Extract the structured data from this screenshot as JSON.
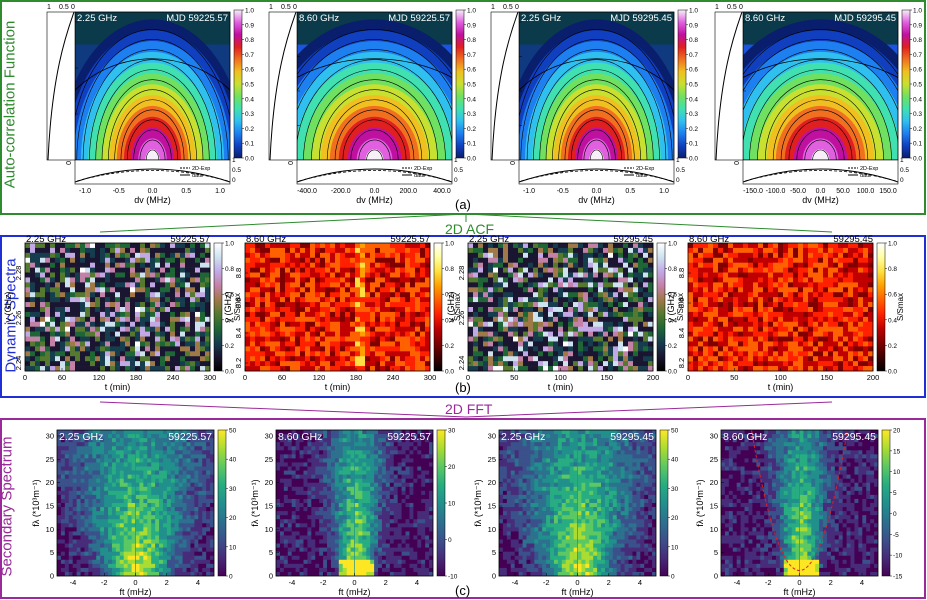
{
  "rows": [
    {
      "key": "acf",
      "title": "Auto-correlation Function",
      "color": "#2e8b2e",
      "label": "(a)",
      "panels": [
        {
          "freq": "2.25 GHz",
          "mjd": "MJD 59225.57",
          "xlabel": "dv (MHz)",
          "ylabel": "dt (min)",
          "xticks": [
            "-1.0",
            "-0.5",
            "0.0",
            "0.5",
            "1.0"
          ],
          "yticks": [
            "0.0",
            "5.0",
            "10.0",
            "15.0"
          ],
          "cbticks": [
            "0.0",
            "0.1",
            "0.2",
            "0.3",
            "0.4",
            "0.5",
            "0.6",
            "0.7",
            "0.8",
            "0.9",
            "1.0"
          ],
          "top_ticks": [
            "1",
            "0.5",
            "0"
          ],
          "right_ticks": [
            "0",
            "0.5",
            "1"
          ],
          "legend": [
            "2D-Exp",
            "data"
          ]
        },
        {
          "freq": "8.60 GHz",
          "mjd": "MJD 59225.57",
          "xlabel": "dv (MHz)",
          "ylabel": "dt (min)",
          "xticks": [
            "-400.0",
            "-200.0",
            "0.0",
            "200.0",
            "400.0"
          ],
          "yticks": [
            "0.0",
            "10.0",
            "20.0",
            "30.0",
            "40.0"
          ],
          "cbticks": [
            "0.0",
            "0.1",
            "0.2",
            "0.3",
            "0.4",
            "0.5",
            "0.6",
            "0.7",
            "0.8",
            "0.9",
            "1.0"
          ],
          "top_ticks": [
            "1",
            "0.5",
            "0"
          ],
          "right_ticks": [
            "0",
            "0.5",
            "1"
          ],
          "legend": [
            "2D-Exp",
            "data"
          ]
        },
        {
          "freq": "2.25 GHz",
          "mjd": "MJD 59295.45",
          "xlabel": "dv (MHz)",
          "ylabel": "dt (min)",
          "xticks": [
            "-1.0",
            "-0.5",
            "0.0",
            "0.5",
            "1.0"
          ],
          "yticks": [
            "0.0",
            "2.0",
            "4.0",
            "6.0",
            "8.0"
          ],
          "cbticks": [
            "0.0",
            "0.1",
            "0.2",
            "0.3",
            "0.4",
            "0.5",
            "0.6",
            "0.7",
            "0.8",
            "0.9",
            "1.0"
          ],
          "top_ticks": [
            "1",
            "0.5",
            "0"
          ],
          "right_ticks": [
            "0",
            "0.5",
            "1"
          ],
          "legend": [
            "2D-Exp",
            "data"
          ]
        },
        {
          "freq": "8.60 GHz",
          "mjd": "MJD 59295.45",
          "xlabel": "dv (MHz)",
          "ylabel": "dt (min)",
          "xticks": [
            "-150.0",
            "-100.0",
            "-50.0",
            "0.0",
            "50.0",
            "100.0",
            "150.0"
          ],
          "yticks": [
            "0.0",
            "10.0",
            "20.0"
          ],
          "cbticks": [
            "0.0",
            "0.1",
            "0.2",
            "0.3",
            "0.4",
            "0.5",
            "0.6",
            "0.7",
            "0.8",
            "0.9",
            "1.0"
          ],
          "top_ticks": [
            "1",
            "0.5",
            "0"
          ],
          "right_ticks": [
            "0",
            "0.5",
            "1"
          ],
          "legend": [
            "2D-Exp",
            "data"
          ]
        }
      ]
    },
    {
      "key": "dyn",
      "title": "Dynamic Spectra",
      "color": "#1f2fd6",
      "label": "(b)",
      "panels": [
        {
          "freq": "2.25 GHz",
          "mjd": "59225.57",
          "xlabel": "t (min)",
          "ylabel": "v (GHz)",
          "xticks": [
            "0",
            "60",
            "120",
            "180",
            "240",
            "300"
          ],
          "yticks": [
            "2.24",
            "2.26",
            "2.28"
          ],
          "cbticks": [
            "0.0",
            "0.2",
            "0.4",
            "0.6",
            "0.8",
            "1.0"
          ],
          "cblabel": "S/Smax",
          "cmap": "cubehelix"
        },
        {
          "freq": "8.60 GHz",
          "mjd": "59225.57",
          "xlabel": "t (min)",
          "ylabel": "v (GHz)",
          "xticks": [
            "0",
            "60",
            "120",
            "180",
            "240",
            "300"
          ],
          "yticks": [
            "8.2",
            "8.4",
            "8.6",
            "8.8"
          ],
          "cbticks": [
            "0.0",
            "0.2",
            "0.4",
            "0.6",
            "0.8",
            "1.0"
          ],
          "cblabel": "S/Smax",
          "cmap": "hot"
        },
        {
          "freq": "2.25 GHz",
          "mjd": "59295.45",
          "xlabel": "t (min)",
          "ylabel": "v (GHz)",
          "xticks": [
            "0",
            "50",
            "100",
            "150",
            "200"
          ],
          "yticks": [
            "2.24",
            "2.26",
            "2.28"
          ],
          "cbticks": [
            "0.0",
            "0.2",
            "0.4",
            "0.6",
            "0.8",
            "1.0"
          ],
          "cblabel": "S/Smax",
          "cmap": "cubehelix"
        },
        {
          "freq": "8.60 GHz",
          "mjd": "59295.45",
          "xlabel": "t (min)",
          "ylabel": "v (GHz)",
          "xticks": [
            "0",
            "50",
            "100",
            "150",
            "200"
          ],
          "yticks": [
            "8.2",
            "8.4",
            "8.6",
            "8.8"
          ],
          "cbticks": [
            "0.0",
            "0.2",
            "0.4",
            "0.6",
            "0.8",
            "1.0"
          ],
          "cblabel": "S/Smax",
          "cmap": "hot"
        }
      ]
    },
    {
      "key": "sec",
      "title": "Secondary Spectrum",
      "color": "#9a2a9a",
      "label": "(c)",
      "panels": [
        {
          "freq": "2.25 GHz",
          "mjd": "59225.57",
          "xlabel": "ft (mHz)",
          "ylabel": "fλ (*10³m⁻¹)",
          "xticks": [
            "-4",
            "-2",
            "0",
            "2",
            "4"
          ],
          "yticks": [
            "0",
            "5",
            "10",
            "15",
            "20",
            "25",
            "30"
          ],
          "cbticks": [
            "0",
            "10",
            "20",
            "30",
            "40",
            "50"
          ]
        },
        {
          "freq": "8.60 GHz",
          "mjd": "59225.57",
          "xlabel": "ft (mHz)",
          "ylabel": "fλ (*10³m⁻¹)",
          "xticks": [
            "-4",
            "-2",
            "0",
            "2",
            "4"
          ],
          "yticks": [
            "0",
            "5",
            "10",
            "15",
            "20",
            "25",
            "30"
          ],
          "cbticks": [
            "-10",
            "0",
            "10",
            "20",
            "30"
          ]
        },
        {
          "freq": "2.25 GHz",
          "mjd": "59295.45",
          "xlabel": "ft (mHz)",
          "ylabel": "fλ (*10³m⁻¹)",
          "xticks": [
            "-4",
            "-2",
            "0",
            "2",
            "4"
          ],
          "yticks": [
            "0",
            "5",
            "10",
            "15",
            "20",
            "25",
            "30"
          ],
          "cbticks": [
            "0",
            "10",
            "20",
            "30",
            "40",
            "50"
          ]
        },
        {
          "freq": "8.60 GHz",
          "mjd": "59295.45",
          "xlabel": "ft (mHz)",
          "ylabel": "fλ (*10³m⁻¹)",
          "xticks": [
            "-4",
            "-2",
            "0",
            "2",
            "4"
          ],
          "yticks": [
            "0",
            "5",
            "10",
            "15",
            "20",
            "25",
            "30"
          ],
          "cbticks": [
            "-15",
            "-10",
            "-5",
            "0",
            "5",
            "10",
            "15",
            "20"
          ],
          "parabola": true
        }
      ]
    }
  ],
  "arrows": {
    "acf_label": "2D ACF",
    "fft_label": "2D FFT"
  },
  "chart_data": [
    {
      "type": "heatmap",
      "title": "Auto-correlation Function",
      "series": [
        {
          "name": "2.25 GHz MJD 59225.57",
          "xlabel": "dv (MHz)",
          "ylabel": "dt (min)",
          "xlim": [
            -1.3,
            1.3
          ],
          "ylim": [
            0,
            18
          ]
        },
        {
          "name": "8.60 GHz MJD 59225.57",
          "xlabel": "dv (MHz)",
          "ylabel": "dt (min)",
          "xlim": [
            -480,
            480
          ],
          "ylim": [
            0,
            40
          ]
        },
        {
          "name": "2.25 GHz MJD 59295.45",
          "xlabel": "dv (MHz)",
          "ylabel": "dt (min)",
          "xlim": [
            -1.3,
            1.3
          ],
          "ylim": [
            0,
            9
          ]
        },
        {
          "name": "8.60 GHz MJD 59295.45",
          "xlabel": "dv (MHz)",
          "ylabel": "dt (min)",
          "xlim": [
            -180,
            180
          ],
          "ylim": [
            0,
            28
          ]
        }
      ],
      "colorbar": [
        0,
        1
      ]
    },
    {
      "type": "heatmap",
      "title": "Dynamic Spectra",
      "series": [
        {
          "name": "2.25 GHz 59225.57",
          "xlim": [
            0,
            320
          ],
          "ylim": [
            2.23,
            2.3
          ]
        },
        {
          "name": "8.60 GHz 59225.57",
          "xlim": [
            0,
            320
          ],
          "ylim": [
            8.2,
            8.95
          ]
        },
        {
          "name": "2.25 GHz 59295.45",
          "xlim": [
            0,
            235
          ],
          "ylim": [
            2.23,
            2.3
          ]
        },
        {
          "name": "8.60 GHz 59295.45",
          "xlim": [
            0,
            235
          ],
          "ylim": [
            8.2,
            8.95
          ]
        }
      ],
      "colorbar": [
        0,
        1
      ]
    },
    {
      "type": "heatmap",
      "title": "Secondary Spectrum",
      "series": [
        {
          "name": "2.25 GHz 59225.57",
          "xlim": [
            -5,
            5
          ],
          "ylim": [
            0,
            32
          ],
          "colorbar": [
            -5,
            55
          ]
        },
        {
          "name": "8.60 GHz 59225.57",
          "xlim": [
            -5,
            5
          ],
          "ylim": [
            0,
            32
          ],
          "colorbar": [
            -15,
            33
          ]
        },
        {
          "name": "2.25 GHz 59295.45",
          "xlim": [
            -5,
            5
          ],
          "ylim": [
            0,
            32
          ],
          "colorbar": [
            -5,
            55
          ]
        },
        {
          "name": "8.60 GHz 59295.45",
          "xlim": [
            -5,
            5
          ],
          "ylim": [
            0,
            32
          ],
          "colorbar": [
            -16,
            23
          ]
        }
      ]
    }
  ]
}
